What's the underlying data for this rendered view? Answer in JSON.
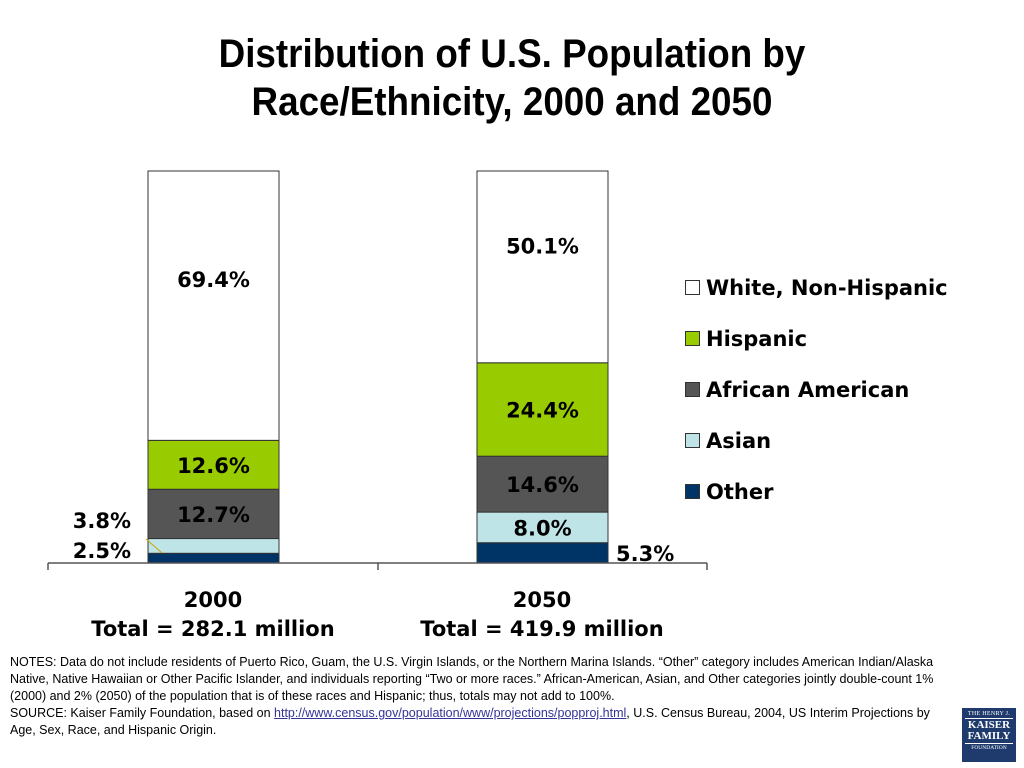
{
  "title": {
    "line1": "Distribution of U.S. Population by",
    "line2": "Race/Ethnicity, 2000 and 2050"
  },
  "chart_data": {
    "type": "bar",
    "stacked": true,
    "title": "Distribution of U.S. Population by Race/Ethnicity, 2000 and 2050",
    "categories": [
      "2000",
      "2050"
    ],
    "category_sublabels": [
      "Total = 282.1 million",
      "Total = 419.9 million"
    ],
    "ylim": [
      0,
      100
    ],
    "grid": false,
    "legend_position": "right",
    "series": [
      {
        "name": "Other",
        "values": [
          2.5,
          5.3
        ],
        "labels": [
          "2.5%",
          "5.3%"
        ],
        "color": "#003366"
      },
      {
        "name": "Asian",
        "values": [
          3.8,
          8.0
        ],
        "labels": [
          "3.8%",
          "8.0%"
        ],
        "color": "#bfe4e8"
      },
      {
        "name": "African American",
        "values": [
          12.7,
          14.6
        ],
        "labels": [
          "12.7%",
          "14.6%"
        ],
        "color": "#555555"
      },
      {
        "name": "Hispanic",
        "values": [
          12.6,
          24.4
        ],
        "labels": [
          "12.6%",
          "24.4%"
        ],
        "color": "#99cc00"
      },
      {
        "name": "White, Non-Hispanic",
        "values": [
          69.4,
          50.1
        ],
        "labels": [
          "69.4%",
          "50.1%"
        ],
        "color": "#ffffff"
      }
    ],
    "legend_order": [
      "White, Non-Hispanic",
      "Hispanic",
      "African American",
      "Asian",
      "Other"
    ]
  },
  "notes": {
    "notes_text": "NOTES: Data do not include residents of Puerto Rico, Guam, the U.S. Virgin Islands, or the Northern Marina Islands. “Other” category includes American Indian/Alaska Native, Native Hawaiian or Other Pacific Islander, and individuals reporting “Two or more races.”  African-American, Asian, and Other categories jointly double-count 1% (2000) and 2% (2050) of the population that is of these races and Hispanic; thus, totals may not add to 100%.",
    "source_prefix": "SOURCE: Kaiser Family Foundation, based on ",
    "source_link": "http://www.census.gov/population/www/projections/popproj.html",
    "source_suffix": ", U.S. Census Bureau, 2004, US Interim Projections by Age, Sex, Race, and Hispanic Origin."
  },
  "logo": {
    "line1": "THE HENRY J.",
    "line2": "KAISER FAMILY",
    "line3": "FOUNDATION"
  }
}
